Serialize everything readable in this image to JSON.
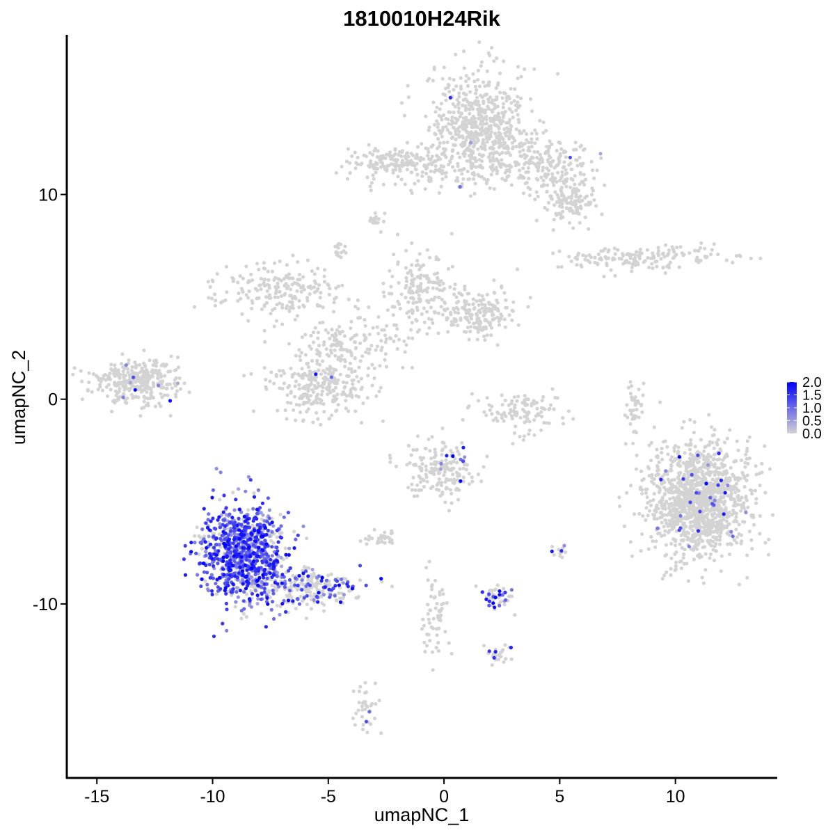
{
  "chart_data": {
    "type": "scatter",
    "title": "1810010H24Rik",
    "xlabel": "umapNC_1",
    "ylabel": "umapNC_2",
    "xlim": [
      -16.3,
      14.4
    ],
    "ylim": [
      -18.5,
      17.8
    ],
    "x_ticks": [
      -15,
      -10,
      -5,
      0,
      5,
      10
    ],
    "x_tick_labels": [
      "-15",
      "-10",
      "-5",
      "0",
      "5",
      "10"
    ],
    "y_ticks": [
      -10,
      0,
      10
    ],
    "y_tick_labels": [
      "-10",
      "0",
      "10"
    ],
    "grid": false,
    "legend": {
      "position": "right",
      "type": "colorbar",
      "min": 0.0,
      "max": 2.0,
      "labels": [
        "2.0",
        "1.5",
        "1.0",
        "0.5",
        "0.0"
      ],
      "label_values": [
        2.0,
        1.5,
        1.0,
        0.5,
        0.0
      ]
    },
    "colors": {
      "low": "#d3d3d3",
      "high": "#0000ff"
    },
    "clusters": [
      {
        "name": "top-center",
        "cx": 1.6,
        "cy": 13.4,
        "sx": 1.1,
        "sy": 1.3,
        "n": 600,
        "expr": 0.01
      },
      {
        "name": "top-bridge",
        "cx": 0.0,
        "cy": 11.3,
        "sx": 2.0,
        "sy": 0.5,
        "n": 150,
        "expr": 0.0
      },
      {
        "name": "top-left-arm",
        "cx": -2.3,
        "cy": 11.6,
        "sx": 0.8,
        "sy": 0.4,
        "n": 100,
        "expr": 0.0
      },
      {
        "name": "top-right-arm",
        "cx": 4.6,
        "cy": 11.4,
        "sx": 1.1,
        "sy": 0.7,
        "n": 180,
        "expr": 0.01
      },
      {
        "name": "top-right-tail",
        "cx": 5.4,
        "cy": 9.6,
        "sx": 0.6,
        "sy": 0.5,
        "n": 110,
        "expr": 0.0
      },
      {
        "name": "small-top",
        "cx": -2.9,
        "cy": 8.7,
        "sx": 0.2,
        "sy": 0.15,
        "n": 15,
        "expr": 0.0
      },
      {
        "name": "small-left",
        "cx": -4.5,
        "cy": 7.3,
        "sx": 0.2,
        "sy": 0.25,
        "n": 15,
        "expr": 0.0
      },
      {
        "name": "mid-right-strip",
        "cx": 8.5,
        "cy": 6.9,
        "sx": 1.8,
        "sy": 0.3,
        "n": 160,
        "expr": 0.0
      },
      {
        "name": "mid-left-arm",
        "cx": -7.2,
        "cy": 5.3,
        "sx": 1.4,
        "sy": 0.7,
        "n": 200,
        "expr": 0.0
      },
      {
        "name": "mid-center-arm",
        "cx": -1.1,
        "cy": 5.3,
        "sx": 0.8,
        "sy": 1.0,
        "n": 170,
        "expr": 0.0
      },
      {
        "name": "mid-right-arm",
        "cx": 1.4,
        "cy": 4.2,
        "sx": 0.8,
        "sy": 0.6,
        "n": 190,
        "expr": 0.0
      },
      {
        "name": "mid-stem",
        "cx": -4.3,
        "cy": 2.6,
        "sx": 1.4,
        "sy": 0.6,
        "n": 140,
        "expr": 0.0
      },
      {
        "name": "mid-lower",
        "cx": -5.3,
        "cy": 0.6,
        "sx": 1.1,
        "sy": 0.8,
        "n": 260,
        "expr": 0.01
      },
      {
        "name": "left-cluster",
        "cx": -13.3,
        "cy": 0.9,
        "sx": 0.9,
        "sy": 0.5,
        "n": 340,
        "expr": 0.02
      },
      {
        "name": "center-curve",
        "cx": 3.3,
        "cy": -0.6,
        "sx": 0.9,
        "sy": 0.5,
        "n": 110,
        "expr": 0.0
      },
      {
        "name": "right-strip",
        "cx": 8.2,
        "cy": -0.3,
        "sx": 0.2,
        "sy": 0.8,
        "n": 40,
        "expr": 0.0
      },
      {
        "name": "right-big",
        "cx": 11.0,
        "cy": -4.9,
        "sx": 1.1,
        "sy": 1.4,
        "n": 1300,
        "expr": 0.02
      },
      {
        "name": "center-lower",
        "cx": -0.2,
        "cy": -3.5,
        "sx": 0.7,
        "sy": 0.7,
        "n": 190,
        "expr": 0.04
      },
      {
        "name": "lower-small",
        "cx": -2.7,
        "cy": -6.8,
        "sx": 0.3,
        "sy": 0.2,
        "n": 30,
        "expr": 0.0
      },
      {
        "name": "expressing-cluster",
        "cx": -8.6,
        "cy": -7.6,
        "sx": 0.9,
        "sy": 1.2,
        "n": 950,
        "expr": 0.75
      },
      {
        "name": "expressing-tail",
        "cx": -5.8,
        "cy": -9.2,
        "sx": 1.1,
        "sy": 0.5,
        "n": 230,
        "expr": 0.3
      },
      {
        "name": "lower-center-strip",
        "cx": -0.3,
        "cy": -10.7,
        "sx": 0.3,
        "sy": 1.1,
        "n": 60,
        "expr": 0.0
      },
      {
        "name": "small-right-a",
        "cx": 2.3,
        "cy": -9.6,
        "sx": 0.4,
        "sy": 0.3,
        "n": 50,
        "expr": 0.35
      },
      {
        "name": "small-right-b",
        "cx": 2.3,
        "cy": -12.5,
        "sx": 0.3,
        "sy": 0.2,
        "n": 25,
        "expr": 0.2
      },
      {
        "name": "small-right-c",
        "cx": 5.0,
        "cy": -7.5,
        "sx": 0.15,
        "sy": 0.25,
        "n": 12,
        "expr": 0.2
      },
      {
        "name": "bottom-small",
        "cx": -3.4,
        "cy": -14.9,
        "sx": 0.25,
        "sy": 0.6,
        "n": 35,
        "expr": 0.05
      }
    ]
  }
}
